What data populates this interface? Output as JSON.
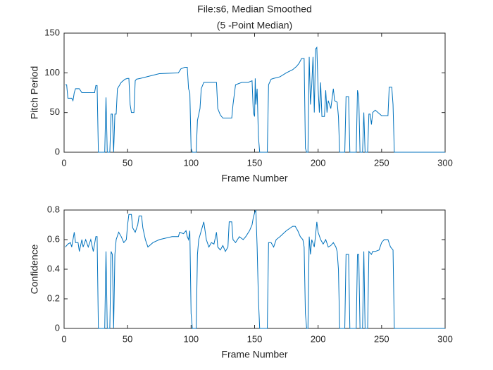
{
  "chart_data": [
    {
      "type": "line",
      "title": "File:s6, Median Smoothed",
      "subtitle": "(5 -Point Median)",
      "x_label": "Frame Number",
      "y_label": "Pitch Period",
      "xlim": [
        0,
        300
      ],
      "ylim": [
        0,
        150
      ],
      "xticks": [
        0,
        50,
        100,
        150,
        200,
        250,
        300
      ],
      "yticks": [
        0,
        50,
        100,
        150
      ],
      "grid": false,
      "series": [
        {
          "color": "#0072bd",
          "x": [
            1,
            2,
            3,
            6,
            7,
            8,
            9,
            12,
            14,
            24,
            25,
            26,
            27,
            32,
            33,
            34,
            36,
            37,
            38,
            39,
            40,
            41,
            42,
            45,
            48,
            50,
            51,
            52,
            53,
            55,
            56,
            57,
            60,
            65,
            70,
            75,
            90,
            92,
            95,
            97,
            98,
            99,
            100,
            101,
            104,
            105,
            107,
            108,
            110,
            120,
            121,
            123,
            125,
            132,
            133,
            135,
            140,
            145,
            148,
            149,
            150,
            150.5,
            151,
            152,
            153,
            154,
            160,
            161,
            163,
            165,
            170,
            175,
            180,
            183,
            185,
            187,
            189,
            190,
            191,
            192,
            193,
            194,
            195,
            196,
            197,
            198,
            199,
            200,
            201,
            202,
            203,
            205,
            206,
            207,
            208,
            210,
            212,
            213,
            215,
            216,
            217,
            221,
            222,
            224,
            225,
            230,
            231,
            232,
            233,
            235,
            236,
            237,
            239,
            240,
            241,
            242,
            243,
            245,
            250,
            255,
            256,
            258,
            259,
            260,
            300
          ],
          "values": [
            85,
            85,
            68,
            68,
            65,
            75,
            80,
            80,
            75,
            75,
            84,
            84,
            0,
            0,
            69,
            0,
            0,
            48,
            48,
            0,
            48,
            48,
            80,
            88,
            92,
            93,
            93,
            60,
            50,
            50,
            90,
            92,
            93,
            95,
            97,
            99,
            100,
            105,
            107,
            107,
            80,
            75,
            5,
            0,
            0,
            40,
            55,
            80,
            88,
            88,
            55,
            47,
            43,
            43,
            60,
            85,
            88,
            88,
            90,
            50,
            45,
            93,
            60,
            80,
            20,
            0,
            0,
            85,
            92,
            93,
            95,
            100,
            104,
            108,
            112,
            118,
            118,
            5,
            0,
            0,
            120,
            60,
            85,
            120,
            50,
            130,
            132,
            80,
            50,
            88,
            45,
            45,
            78,
            50,
            65,
            55,
            80,
            65,
            63,
            45,
            0,
            0,
            70,
            70,
            0,
            0,
            78,
            70,
            0,
            0,
            50,
            0,
            0,
            48,
            48,
            35,
            50,
            53,
            46,
            46,
            82,
            82,
            60,
            0,
            0
          ]
        }
      ]
    },
    {
      "type": "line",
      "x_label": "Frame Number",
      "y_label": "Confidence",
      "xlim": [
        0,
        300
      ],
      "ylim": [
        0,
        0.8
      ],
      "xticks": [
        0,
        50,
        100,
        150,
        200,
        250,
        300
      ],
      "yticks": [
        0,
        0.2,
        0.4,
        0.6,
        0.8
      ],
      "grid": false,
      "series": [
        {
          "color": "#0072bd",
          "x": [
            1,
            3,
            5,
            6,
            8,
            9,
            11,
            12,
            14,
            15,
            17,
            19,
            21,
            23,
            25,
            26,
            27,
            32,
            33,
            34,
            36,
            37,
            38,
            39,
            40,
            41,
            43,
            45,
            47,
            49,
            50,
            51,
            53,
            54,
            56,
            58,
            59,
            61,
            62,
            64,
            66,
            70,
            75,
            85,
            90,
            91,
            94,
            96,
            97,
            98,
            99,
            100,
            101,
            104,
            105,
            106,
            108,
            110,
            112,
            114,
            116,
            118,
            120,
            121,
            123,
            125,
            127,
            129,
            130,
            132,
            133,
            135,
            138,
            141,
            143,
            146,
            148,
            149,
            150,
            151,
            152,
            153,
            154,
            160,
            161,
            163,
            165,
            167,
            170,
            175,
            180,
            182,
            184,
            186,
            188,
            189,
            190,
            191,
            192,
            193,
            194,
            195,
            197,
            198,
            199,
            200,
            202,
            204,
            206,
            208,
            210,
            212,
            214,
            215,
            216,
            217,
            221,
            222,
            224,
            225,
            230,
            231,
            232,
            233,
            235,
            236,
            237,
            239,
            240,
            242,
            243,
            245,
            248,
            250,
            252,
            255,
            257,
            259,
            260,
            300
          ],
          "values": [
            0.55,
            0.57,
            0.58,
            0.55,
            0.65,
            0.58,
            0.58,
            0.52,
            0.6,
            0.55,
            0.6,
            0.55,
            0.6,
            0.52,
            0.62,
            0.62,
            0,
            0,
            0.52,
            0,
            0,
            0.52,
            0.5,
            0,
            0.5,
            0.6,
            0.65,
            0.62,
            0.58,
            0.6,
            0.7,
            0.77,
            0.77,
            0.68,
            0.65,
            0.7,
            0.76,
            0.76,
            0.68,
            0.6,
            0.55,
            0.58,
            0.6,
            0.62,
            0.62,
            0.65,
            0.64,
            0.66,
            0.62,
            0.6,
            0.66,
            0.1,
            0,
            0,
            0.5,
            0.6,
            0.66,
            0.72,
            0.6,
            0.55,
            0.58,
            0.57,
            0.65,
            0.55,
            0.53,
            0.56,
            0.52,
            0.55,
            0.72,
            0.72,
            0.6,
            0.58,
            0.62,
            0.6,
            0.62,
            0.66,
            0.7,
            0.75,
            0.78,
            0.8,
            0.55,
            0.2,
            0,
            0,
            0.58,
            0.58,
            0.55,
            0.6,
            0.62,
            0.66,
            0.69,
            0.69,
            0.66,
            0.62,
            0.6,
            0.55,
            0.1,
            0,
            0,
            0.62,
            0.5,
            0.6,
            0.55,
            0.63,
            0.72,
            0.65,
            0.6,
            0.57,
            0.6,
            0.55,
            0.56,
            0.58,
            0.55,
            0.52,
            0.4,
            0,
            0,
            0.5,
            0.5,
            0,
            0,
            0.5,
            0.5,
            0,
            0,
            0.52,
            0,
            0,
            0.52,
            0.5,
            0.52,
            0.52,
            0.53,
            0.58,
            0.6,
            0.6,
            0.55,
            0.53,
            0,
            0
          ]
        }
      ]
    }
  ]
}
